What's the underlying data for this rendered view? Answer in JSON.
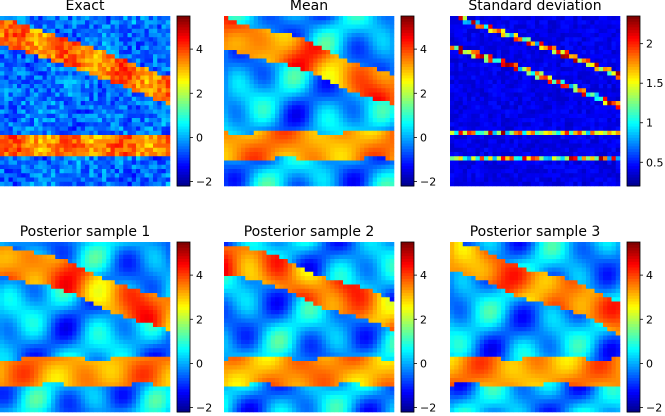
{
  "chart_data": {
    "type": "heatmap",
    "layout": "2 rows x 3 columns",
    "colormap": "jet",
    "panels": [
      {
        "title": "Exact",
        "colorbar_ticks": [
          -2,
          0,
          2,
          4
        ],
        "vmin": -2.2,
        "vmax": 5.5,
        "field": "exact"
      },
      {
        "title": "Mean",
        "colorbar_ticks": [
          -2,
          0,
          2,
          4
        ],
        "vmin": -2.2,
        "vmax": 5.5,
        "field": "mean"
      },
      {
        "title": "Standard deviation",
        "colorbar_ticks": [
          0.5,
          1.0,
          1.5,
          2.0
        ],
        "vmin": 0.2,
        "vmax": 2.35,
        "field": "std"
      },
      {
        "title": "Posterior sample 1",
        "colorbar_ticks": [
          -2,
          0,
          2,
          4
        ],
        "vmin": -2.2,
        "vmax": 5.5,
        "field": "sample1"
      },
      {
        "title": "Posterior sample 2",
        "colorbar_ticks": [
          -2,
          0,
          2,
          4
        ],
        "vmin": -2.2,
        "vmax": 5.5,
        "field": "sample2"
      },
      {
        "title": "Posterior sample 3",
        "colorbar_ticks": [
          -2,
          0,
          2,
          4
        ],
        "vmin": -2.2,
        "vmax": 5.5,
        "field": "sample3"
      }
    ]
  }
}
